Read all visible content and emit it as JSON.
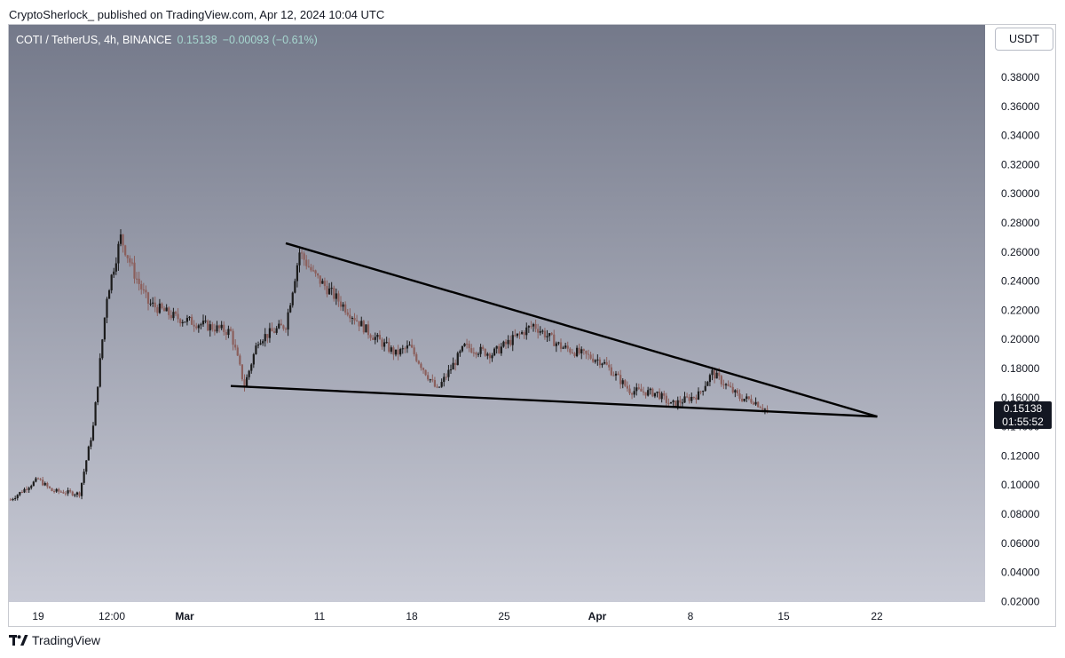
{
  "header": {
    "text": "CryptoSherlock_ published on TradingView.com, Apr 12, 2024 10:04 UTC"
  },
  "legend": {
    "symbol": "COTI / TetherUS, 4h, BINANCE",
    "price": "0.15138",
    "change": "−0.00093 (−0.61%)"
  },
  "currency_button": "USDT",
  "price_tag": {
    "price": "0.15138",
    "countdown": "01:55:52"
  },
  "footer": {
    "logo_text": "TradingView"
  },
  "colors": {
    "background_top": "#74798a",
    "background_bottom": "#c9cbd6",
    "up_candle": "#1b1b1b",
    "down_candle": "#8b5f5c",
    "trendline": "#000000"
  },
  "chart_data": {
    "type": "candlestick",
    "title": "COTI / TetherUS, 4h, BINANCE",
    "ylim": [
      0.0,
      0.4
    ],
    "y_ticks": [
      "0.38000",
      "0.36000",
      "0.34000",
      "0.32000",
      "0.30000",
      "0.28000",
      "0.26000",
      "0.24000",
      "0.22000",
      "0.20000",
      "0.18000",
      "0.16000",
      "0.14000",
      "0.12000",
      "0.10000",
      "0.08000",
      "0.06000",
      "0.04000",
      "0.02000"
    ],
    "x_ticks": [
      "19",
      "12:00",
      "Mar",
      "11",
      "18",
      "25",
      "Apr",
      "8",
      "15",
      "22"
    ],
    "series": [
      {
        "name": "COTI/USDT",
        "key_points": [
          {
            "date": "2024-02-17",
            "price": 0.09
          },
          {
            "date": "2024-02-19",
            "price": 0.104
          },
          {
            "date": "2024-02-20",
            "price": 0.096
          },
          {
            "date": "2024-02-22",
            "price": 0.094
          },
          {
            "date": "2024-02-23",
            "price": 0.14
          },
          {
            "date": "2024-02-24",
            "price": 0.23
          },
          {
            "date": "2024-02-25",
            "price": 0.27
          },
          {
            "date": "2024-02-26",
            "price": 0.245
          },
          {
            "date": "2024-02-27",
            "price": 0.225
          },
          {
            "date": "2024-02-29",
            "price": 0.215
          },
          {
            "date": "2024-03-02",
            "price": 0.21
          },
          {
            "date": "2024-03-04",
            "price": 0.205
          },
          {
            "date": "2024-03-05",
            "price": 0.168
          },
          {
            "date": "2024-03-06",
            "price": 0.2
          },
          {
            "date": "2024-03-08",
            "price": 0.21
          },
          {
            "date": "2024-03-09",
            "price": 0.26
          },
          {
            "date": "2024-03-10",
            "price": 0.245
          },
          {
            "date": "2024-03-12",
            "price": 0.225
          },
          {
            "date": "2024-03-14",
            "price": 0.205
          },
          {
            "date": "2024-03-16",
            "price": 0.19
          },
          {
            "date": "2024-03-17",
            "price": 0.195
          },
          {
            "date": "2024-03-19",
            "price": 0.165
          },
          {
            "date": "2024-03-21",
            "price": 0.195
          },
          {
            "date": "2024-03-23",
            "price": 0.19
          },
          {
            "date": "2024-03-26",
            "price": 0.21
          },
          {
            "date": "2024-03-28",
            "price": 0.195
          },
          {
            "date": "2024-03-31",
            "price": 0.185
          },
          {
            "date": "2024-04-02",
            "price": 0.165
          },
          {
            "date": "2024-04-04",
            "price": 0.163
          },
          {
            "date": "2024-04-05",
            "price": 0.155
          },
          {
            "date": "2024-04-07",
            "price": 0.162
          },
          {
            "date": "2024-04-08",
            "price": 0.177
          },
          {
            "date": "2024-04-10",
            "price": 0.16
          },
          {
            "date": "2024-04-11",
            "price": 0.158
          },
          {
            "date": "2024-04-12",
            "price": 0.151
          }
        ]
      }
    ],
    "trendlines": [
      {
        "name": "",
        "start": {
          "date": "2024-03-08",
          "price": 0.266
        },
        "end": {
          "date": "2024-04-20",
          "price": 0.147
        }
      },
      {
        "name": "",
        "start": {
          "date": "2024-03-04",
          "price": 0.168
        },
        "end": {
          "date": "2024-04-20",
          "price": 0.147
        }
      }
    ]
  }
}
